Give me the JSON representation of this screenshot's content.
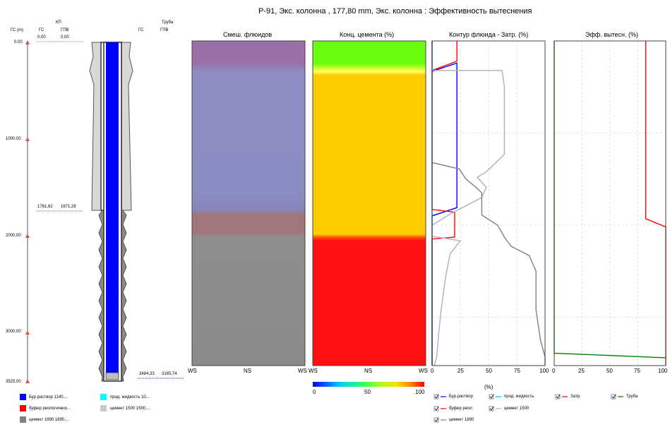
{
  "title": "Р-91, Экс. колонна , 177,80 mm, Экс. колонна : Эффективность вытеснения",
  "depth_track": {
    "kp_label": "КП",
    "pipe_label": "Труба",
    "col_gc": "ГС (m)",
    "col_gs": "ГС",
    "col_gpv": "ГПВ",
    "col_pipe_gs": "ГС",
    "col_pipe_gpv": "ГПВ",
    "top_gs": "0,00",
    "top_gpv": "0,00",
    "shoe_gs": "1761,62",
    "shoe_gpv": "1671,28",
    "bottom_gs": "3484,33",
    "bottom_gpv": "3165,74",
    "depth_labels": [
      "0,00",
      "1000,00",
      "2000,00",
      "3000,00",
      "3525,00"
    ]
  },
  "panels": {
    "mixing": {
      "title": "Смеш. флюидов",
      "x_labels": [
        "WS",
        "NS",
        "WS"
      ],
      "bands": [
        {
          "top": 0,
          "bottom": 260,
          "color": "#9a6ea6"
        },
        {
          "top": 340,
          "bottom": 1680,
          "color": "#8c8cc4"
        },
        {
          "top": 1680,
          "bottom": 1840,
          "color": "#8585bb"
        },
        {
          "top": 1840,
          "bottom": 2100,
          "color": "#a0767c"
        },
        {
          "top": 2100,
          "bottom": 3525,
          "color": "#8e8e8e"
        }
      ]
    },
    "cement": {
      "title": "Конц. цемента (%)",
      "x_labels": [
        "WS",
        "NS",
        "WS"
      ],
      "bands": [
        {
          "top": 0,
          "bottom": 250,
          "color": "#6aff10"
        },
        {
          "top": 330,
          "bottom": 2090,
          "color": "#ffcc00"
        },
        {
          "top": 2140,
          "bottom": 3525,
          "color": "#ff1010"
        }
      ],
      "colorbar_ticks": [
        "0",
        "50",
        "100"
      ]
    },
    "contour": {
      "title": "Контур флюида - Затр. (%)",
      "x_ticks": [
        "0",
        "25",
        "50",
        "75",
        "100"
      ],
      "x_unit": "(%)"
    },
    "efficiency": {
      "title": "Эфф. вытесн. (%)",
      "x_ticks": [
        "0",
        "25",
        "50",
        "75",
        "100"
      ]
    }
  },
  "legend_fluids": [
    {
      "label": "Бур.раствор 1140,...",
      "color": "#0000ff"
    },
    {
      "label": "прод. жидкость 10...",
      "color": "#00ffff"
    },
    {
      "label": "буфер реологическ...",
      "color": "#ff0000"
    },
    {
      "label": "цемент 1500 1500,...",
      "color": "#c8c8c8"
    },
    {
      "label": "цемент 1890 1890,...",
      "color": "#808080"
    }
  ],
  "legend_series": [
    {
      "label": "Бур.раствор",
      "color": "#0000ff"
    },
    {
      "label": "прод. жидкость",
      "color": "#00bfff"
    },
    {
      "label": "Затр.",
      "color": "#ff0000"
    },
    {
      "label": "Труба",
      "color": "#008000"
    },
    {
      "label": "буфер реол",
      "color": "#ff0000"
    },
    {
      "label": "цемент 1500",
      "color": "#b0b0b0"
    },
    {
      "label": "цемент 1890",
      "color": "#808080"
    }
  ],
  "chart_data": [
    {
      "type": "line",
      "title": "Контур флюида - Затр. (%)",
      "xlabel": "(%)",
      "xlim": [
        0,
        100
      ],
      "ylim": [
        3525,
        0
      ],
      "grid": true,
      "series": [
        {
          "name": "Бур.раствор",
          "color": "#0000ff",
          "points": [
            [
              0,
              0
            ],
            [
              0,
              330
            ],
            [
              22,
              240
            ],
            [
              22,
              1810
            ],
            [
              0,
              1900
            ],
            [
              0,
              3525
            ]
          ]
        },
        {
          "name": "прод. жидкость",
          "color": "#00bfff",
          "points": [
            [
              0,
              0
            ],
            [
              0,
              3525
            ]
          ]
        },
        {
          "name": "буфер реол",
          "color": "#ff0000",
          "points": [
            [
              22,
              0
            ],
            [
              22,
              220
            ],
            [
              0,
              320
            ],
            [
              0,
              1830
            ],
            [
              20,
              1860
            ],
            [
              20,
              2130
            ],
            [
              0,
              2150
            ],
            [
              0,
              3525
            ]
          ]
        },
        {
          "name": "цемент 1500",
          "color": "#b0b0b0",
          "points": [
            [
              0,
              0
            ],
            [
              0,
              320
            ],
            [
              62,
              320
            ],
            [
              64,
              500
            ],
            [
              64,
              1230
            ],
            [
              60,
              1280
            ],
            [
              48,
              1420
            ],
            [
              40,
              1480
            ],
            [
              48,
              1590
            ],
            [
              44,
              1700
            ],
            [
              30,
              1790
            ],
            [
              16,
              1880
            ],
            [
              0,
              2000
            ],
            [
              0,
              2120
            ],
            [
              25,
              2170
            ],
            [
              16,
              2310
            ],
            [
              12,
              2560
            ],
            [
              8,
              2920
            ],
            [
              6,
              3160
            ],
            [
              4,
              3430
            ],
            [
              2,
              3525
            ]
          ]
        },
        {
          "name": "цемент 1890",
          "color": "#808080",
          "points": [
            [
              0,
              0
            ],
            [
              0,
              1320
            ],
            [
              24,
              1390
            ],
            [
              30,
              1500
            ],
            [
              38,
              1580
            ],
            [
              44,
              1650
            ],
            [
              44,
              1890
            ],
            [
              58,
              2000
            ],
            [
              64,
              2130
            ],
            [
              70,
              2230
            ],
            [
              86,
              2330
            ],
            [
              92,
              2500
            ],
            [
              92,
              2920
            ],
            [
              96,
              3250
            ],
            [
              100,
              3430
            ],
            [
              100,
              3525
            ]
          ]
        }
      ]
    },
    {
      "type": "line",
      "title": "Эфф. вытесн. (%)",
      "xlim": [
        0,
        100
      ],
      "ylim": [
        3525,
        0
      ],
      "grid": true,
      "series": [
        {
          "name": "Затр.",
          "color": "#ff0000",
          "points": [
            [
              82,
              0
            ],
            [
              82,
              1930
            ],
            [
              100,
              2020
            ],
            [
              100,
              3525
            ]
          ]
        },
        {
          "name": "Труба",
          "color": "#008000",
          "points": [
            [
              0,
              0
            ],
            [
              0,
              3390
            ],
            [
              100,
              3440
            ]
          ]
        }
      ]
    }
  ]
}
